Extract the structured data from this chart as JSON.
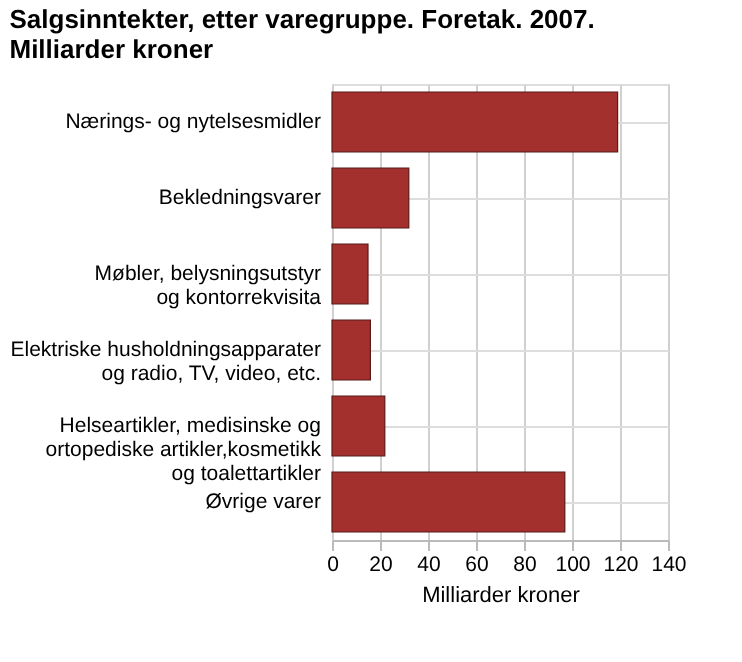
{
  "chart_data": {
    "type": "bar",
    "orientation": "horizontal",
    "title": "Salgsinntekter, etter varegruppe. Foretak. 2007.\nMilliarder kroner",
    "xlabel": "Milliarder kroner",
    "categories": [
      "Nærings- og nytelsesmidler",
      "Bekledningsvarer",
      "Møbler, belysningsutstyr\nog kontorrekvisita",
      "Elektriske husholdningsapparater\nog radio, TV, video, etc.",
      "Helseartikler, medisinske og\nortopediske artikler,kosmetikk\nog toalettartikler",
      "Øvrige varer"
    ],
    "values": [
      119,
      32,
      15,
      16,
      22,
      97
    ],
    "color": "#a3302c",
    "xlim": [
      0,
      140
    ],
    "xticks": [
      0,
      20,
      40,
      60,
      80,
      100,
      120,
      140
    ],
    "grid": true
  }
}
